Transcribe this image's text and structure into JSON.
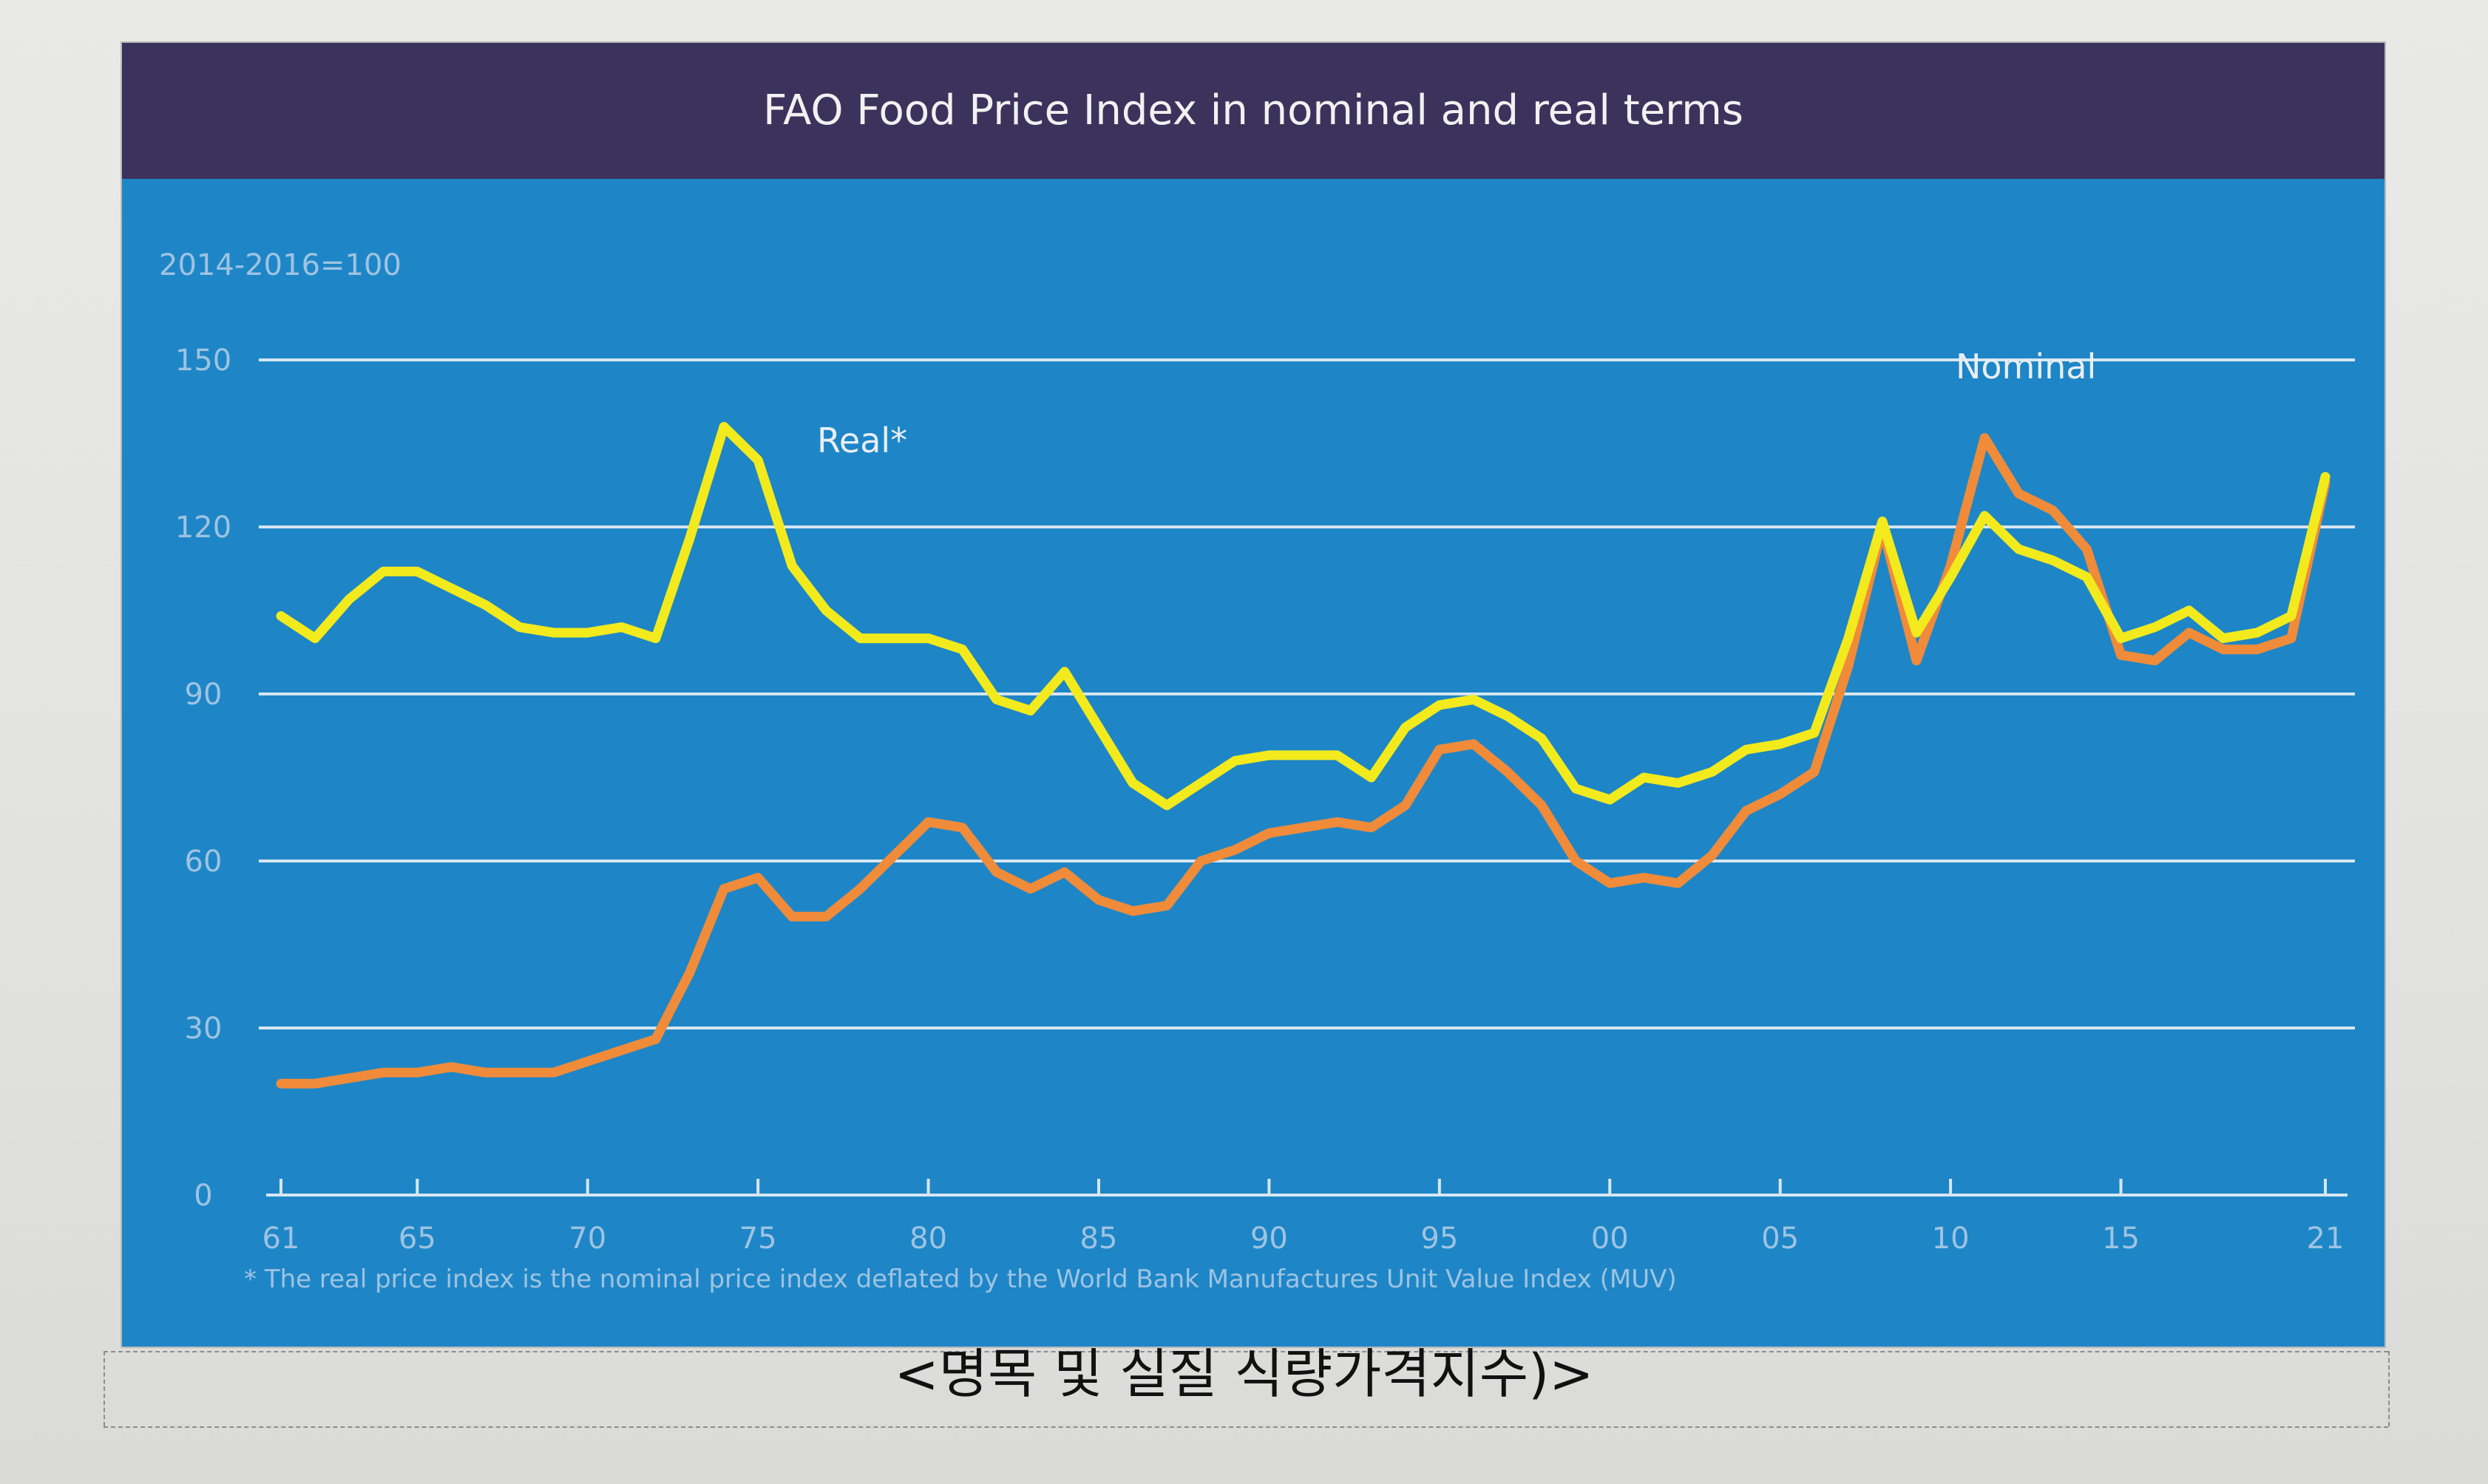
{
  "chart_data": {
    "type": "line",
    "title": "FAO Food Price Index in nominal and real terms",
    "unit_label": "2014-2016=100",
    "y_ticks": [
      0,
      30,
      60,
      90,
      120,
      150
    ],
    "ylim": [
      0,
      150
    ],
    "x_ticks": [
      {
        "year": 1961,
        "label": "61"
      },
      {
        "year": 1965,
        "label": "65"
      },
      {
        "year": 1970,
        "label": "70"
      },
      {
        "year": 1975,
        "label": "75"
      },
      {
        "year": 1980,
        "label": "80"
      },
      {
        "year": 1985,
        "label": "85"
      },
      {
        "year": 1990,
        "label": "90"
      },
      {
        "year": 1995,
        "label": "95"
      },
      {
        "year": 2000,
        "label": "00"
      },
      {
        "year": 2005,
        "label": "05"
      },
      {
        "year": 2010,
        "label": "10"
      },
      {
        "year": 2015,
        "label": "15"
      },
      {
        "year": 2021,
        "label": "21"
      }
    ],
    "xlim": [
      1961,
      2021
    ],
    "grid": true,
    "x": [
      1961,
      1962,
      1963,
      1964,
      1965,
      1966,
      1967,
      1968,
      1969,
      1970,
      1971,
      1972,
      1973,
      1974,
      1975,
      1976,
      1977,
      1978,
      1979,
      1980,
      1981,
      1982,
      1983,
      1984,
      1985,
      1986,
      1987,
      1988,
      1989,
      1990,
      1991,
      1992,
      1993,
      1994,
      1995,
      1996,
      1997,
      1998,
      1999,
      2000,
      2001,
      2002,
      2003,
      2004,
      2005,
      2006,
      2007,
      2008,
      2009,
      2010,
      2011,
      2012,
      2013,
      2014,
      2015,
      2016,
      2017,
      2018,
      2019,
      2020,
      2021
    ],
    "series": [
      {
        "name": "Real*",
        "color": "#f2ea1c",
        "values": [
          104,
          100,
          107,
          112,
          112,
          109,
          106,
          102,
          101,
          101,
          102,
          100,
          118,
          138,
          132,
          113,
          105,
          100,
          100,
          100,
          98,
          89,
          87,
          94,
          84,
          74,
          70,
          74,
          78,
          79,
          79,
          79,
          75,
          84,
          88,
          89,
          86,
          82,
          73,
          71,
          75,
          74,
          76,
          80,
          81,
          83,
          100,
          121,
          101,
          111,
          122,
          116,
          114,
          111,
          100,
          102,
          105,
          100,
          101,
          104,
          129
        ]
      },
      {
        "name": "Nominal",
        "color": "#f08b3a",
        "values": [
          20,
          20,
          21,
          22,
          22,
          23,
          22,
          22,
          22,
          24,
          26,
          28,
          40,
          55,
          57,
          50,
          50,
          55,
          61,
          67,
          66,
          58,
          55,
          58,
          53,
          51,
          52,
          60,
          62,
          65,
          66,
          67,
          66,
          70,
          80,
          81,
          76,
          70,
          60,
          56,
          57,
          56,
          61,
          69,
          72,
          76,
          95,
          120,
          96,
          113,
          136,
          126,
          123,
          116,
          97,
          96,
          101,
          98,
          98,
          100,
          128
        ]
      }
    ],
    "footnote": "* The real price index is the nominal price index deflated by the World Bank Manufactures Unit Value Index (MUV)"
  },
  "caption": "<명목 및 실질 식량가격지수)>",
  "colors": {
    "title_bar": "#3b335c",
    "plot_background": "#1e86c6",
    "gridline": "#d6e6f2",
    "axis_text": "#9ec3e2"
  }
}
